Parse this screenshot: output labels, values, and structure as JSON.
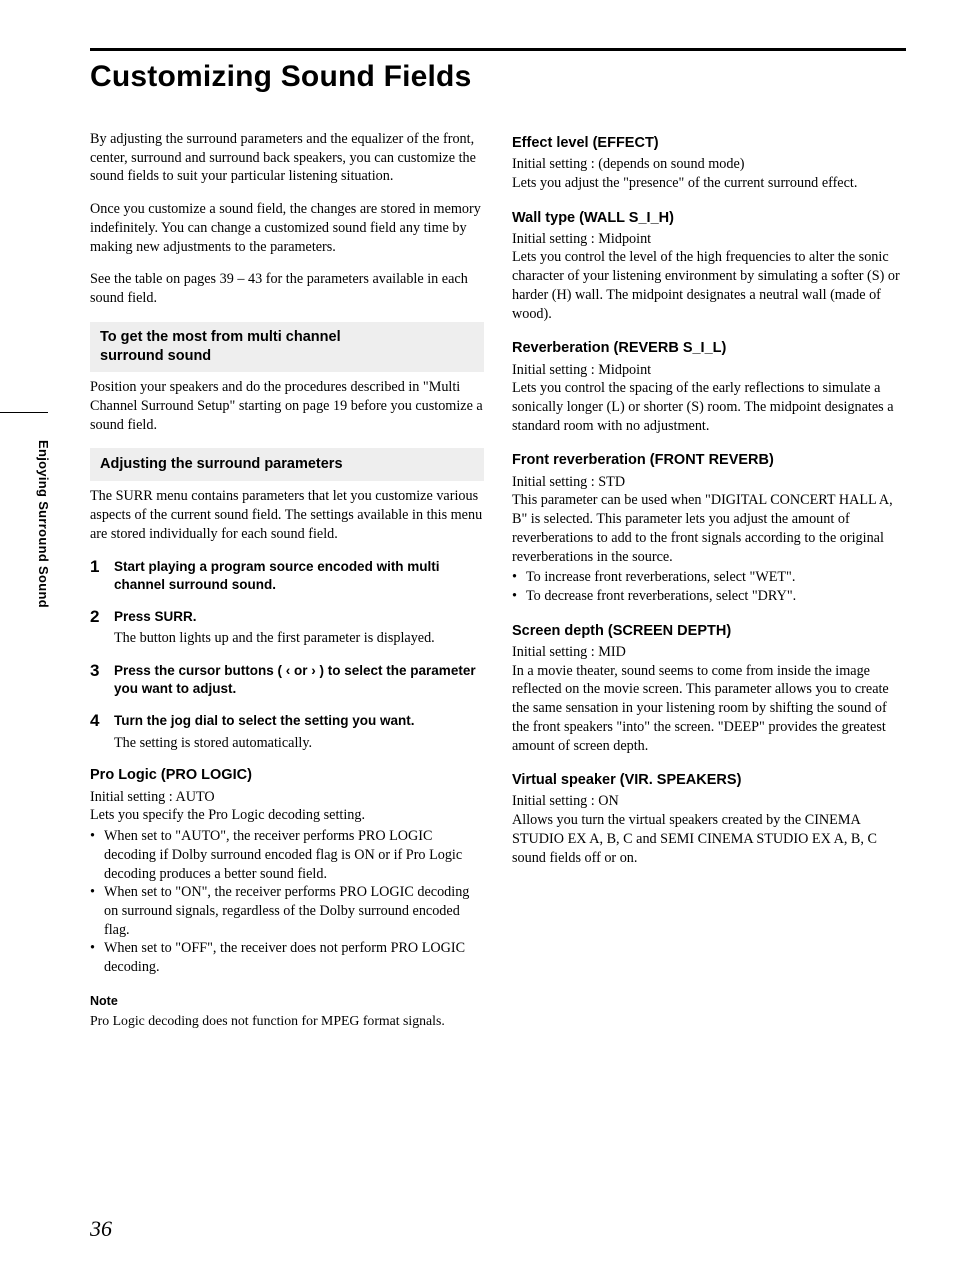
{
  "page": {
    "title": "Customizing Sound Fields",
    "sideLabel": "Enjoying Surround Sound",
    "pageNumber": "36"
  },
  "left": {
    "intro1": "By adjusting the surround parameters and the equalizer of the front, center, surround and surround back speakers, you can customize the sound fields to suit your particular listening situation.",
    "intro2": "Once you customize a sound field, the changes are stored in memory indefinitely. You can change a customized sound field any time by making new adjustments to the parameters.",
    "intro3": "See the table on pages 39 – 43 for the parameters available in each sound field.",
    "box1Line1": "To get the most from multi channel",
    "box1Line2": "surround sound",
    "box1Body": "Position your speakers and do the procedures described in \"Multi Channel Surround Setup\" starting on page 19 before you customize a sound field.",
    "box2": "Adjusting the surround parameters",
    "box2Body": "The SURR menu contains parameters that let you customize various aspects of the current sound field. The settings available in this menu are stored individually for each sound field.",
    "steps": [
      {
        "num": "1",
        "bold": "Start playing a program source encoded with multi channel surround sound."
      },
      {
        "num": "2",
        "bold": "Press SURR.",
        "plain": "The button lights up and the first parameter is displayed."
      },
      {
        "num": "3",
        "bold": "Press the cursor buttons ( ‹ or › ) to select the parameter you want to adjust."
      },
      {
        "num": "4",
        "bold": "Turn the jog dial to select the setting you want.",
        "plain": "The setting is stored automatically."
      }
    ],
    "proLogic": {
      "title": "Pro Logic (PRO LOGIC)",
      "init": "Initial setting : AUTO",
      "lead": "Lets you specify the Pro Logic decoding setting.",
      "bullets": [
        "When set to \"AUTO\", the receiver performs PRO LOGIC decoding if Dolby surround encoded flag is ON or if Pro Logic decoding produces a better sound field.",
        "When set to \"ON\", the receiver performs PRO LOGIC decoding on surround signals, regardless of the Dolby surround encoded flag.",
        "When set to \"OFF\", the receiver does not perform PRO LOGIC decoding."
      ]
    },
    "noteLabel": "Note",
    "noteText": "Pro Logic decoding does not function for MPEG format signals."
  },
  "right": {
    "params": [
      {
        "title": "Effect level (EFFECT)",
        "init": "Initial setting : (depends on sound mode)",
        "body": "Lets you adjust the \"presence\" of the current surround effect."
      },
      {
        "title": "Wall type (WALL S_I_H)",
        "init": "Initial setting : Midpoint",
        "body": "Lets you control the level of the high frequencies to alter the sonic character of your listening environment by simulating a softer (S) or harder (H) wall. The midpoint designates a neutral wall (made of wood)."
      },
      {
        "title": "Reverberation (REVERB S_I_L)",
        "init": "Initial setting : Midpoint",
        "body": "Lets you control the spacing of the early reflections to simulate a sonically longer (L) or shorter (S) room. The midpoint designates a standard room with no adjustment."
      },
      {
        "title": "Front reverberation (FRONT REVERB)",
        "init": "Initial setting : STD",
        "body": "This parameter can be used when \"DIGITAL CONCERT HALL A, B\" is selected. This parameter lets you adjust the amount of reverberations to add to the front signals according to the original reverberations in the source.",
        "bullets": [
          "To increase front reverberations, select \"WET\".",
          "To decrease front reverberations, select \"DRY\"."
        ]
      },
      {
        "title": "Screen depth (SCREEN DEPTH)",
        "init": "Initial setting : MID",
        "body": "In a movie theater, sound seems to come from inside the image reflected on the movie screen. This parameter allows you to create the same sensation in your listening room by shifting the sound of the front speakers \"into\" the screen. \"DEEP\" provides the greatest amount of screen depth."
      },
      {
        "title": "Virtual speaker (VIR. SPEAKERS)",
        "init": "Initial setting : ON",
        "body": "Allows you turn the virtual speakers created by the CINEMA STUDIO EX A, B, C and SEMI CINEMA STUDIO EX A, B, C sound fields off or on."
      }
    ]
  }
}
